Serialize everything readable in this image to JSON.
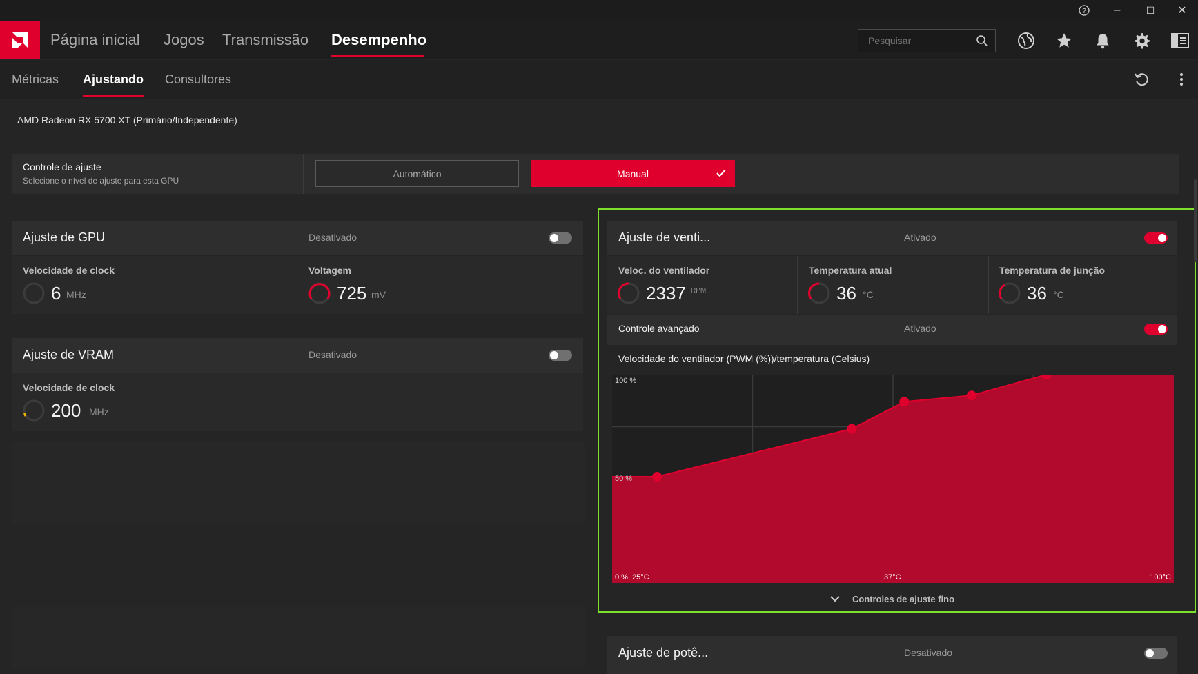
{
  "window": {
    "help_icon": "help-icon",
    "minimize": "–",
    "maximize": "☐",
    "close": "✕"
  },
  "nav": {
    "items": [
      {
        "label": "Página inicial"
      },
      {
        "label": "Jogos"
      },
      {
        "label": "Transmissão"
      },
      {
        "label": "Desempenho"
      }
    ],
    "active": "Desempenho",
    "search_placeholder": "Pesquisar"
  },
  "subnav": {
    "items": [
      {
        "label": "Métricas"
      },
      {
        "label": "Ajustando"
      },
      {
        "label": "Consultores"
      }
    ],
    "active": "Ajustando"
  },
  "gpu_name": "AMD Radeon RX 5700 XT (Primário/Independente)",
  "tuning_control": {
    "title": "Controle de ajuste",
    "subtitle": "Selecione o nível de ajuste para esta GPU",
    "auto_label": "Automático",
    "manual_label": "Manual",
    "selected": "Manual"
  },
  "gpu_tuning": {
    "title": "Ajuste de GPU",
    "state": "Desativado",
    "enabled": false,
    "clock_label": "Velocidade de clock",
    "clock_value": "6",
    "clock_unit": "MHz",
    "voltage_label": "Voltagem",
    "voltage_value": "725",
    "voltage_unit": "mV"
  },
  "vram_tuning": {
    "title": "Ajuste de VRAM",
    "state": "Desativado",
    "enabled": false,
    "clock_label": "Velocidade de clock",
    "clock_value": "200",
    "clock_unit": "MHz"
  },
  "fan_tuning": {
    "title": "Ajuste de venti...",
    "state": "Ativado",
    "enabled": true,
    "fan_speed_label": "Veloc. do ventilador",
    "fan_speed_value": "2337",
    "fan_speed_unit": "RPM",
    "temp_label": "Temperatura atual",
    "temp_value": "36",
    "temp_unit": "°C",
    "junction_label": "Temperatura de junção",
    "junction_value": "36",
    "junction_unit": "°C",
    "advanced_label": "Controle avançado",
    "advanced_state": "Ativado",
    "advanced_enabled": true,
    "chart_title": "Velocidade do ventilador (PWM (%))/temperatura (Celsius)",
    "finetune_label": "Controles de ajuste fino"
  },
  "power_tuning": {
    "title": "Ajuste de potê...",
    "state": "Desativado",
    "enabled": false
  },
  "colors": {
    "accent": "#e0002e",
    "highlight": "#7ee02a",
    "chart_fill": "#b20a2c"
  },
  "chart_data": {
    "type": "area",
    "title": "Velocidade do ventilador (PWM (%))/temperatura (Celsius)",
    "xlabel": "",
    "ylabel": "",
    "xlim": [
      25,
      100
    ],
    "ylim": [
      0,
      100
    ],
    "x_tick_labels": [
      "0 %, 25°C",
      "37°C",
      "100°C"
    ],
    "y_tick_labels": [
      "100 %",
      "50 %"
    ],
    "points": [
      {
        "x": 31,
        "y": 51
      },
      {
        "x": 57,
        "y": 74
      },
      {
        "x": 64,
        "y": 87
      },
      {
        "x": 73,
        "y": 90
      },
      {
        "x": 83,
        "y": 100
      }
    ]
  }
}
